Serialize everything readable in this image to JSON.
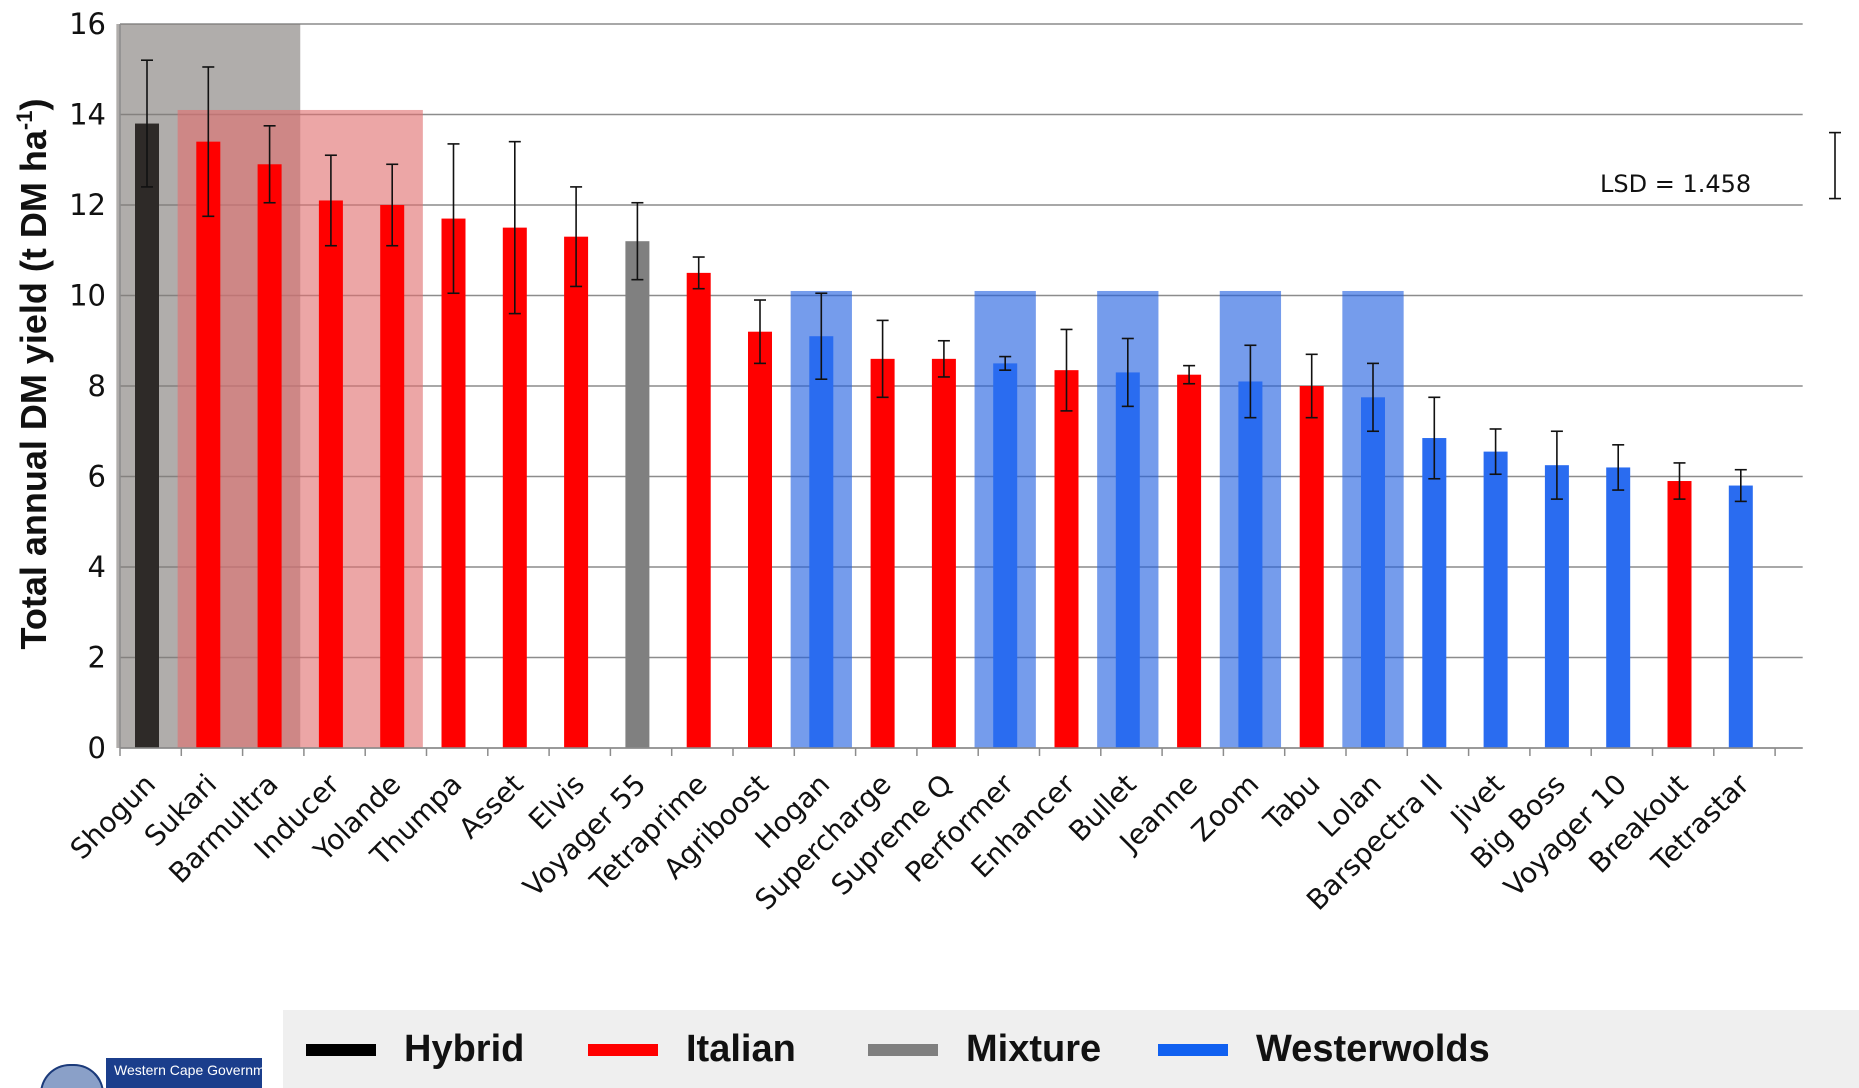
{
  "chart_data": {
    "type": "bar",
    "title": "",
    "xlabel": "",
    "ylabel": "Total annual DM yield (t DM ha",
    "ylabel_superscript": "-1",
    "ylabel_close": ")",
    "ylim": [
      0,
      16
    ],
    "yticks": [
      0,
      2,
      4,
      6,
      8,
      10,
      12,
      14,
      16
    ],
    "grid": "horizontal",
    "categories": [
      "Shogun",
      "Sukari",
      "Barmultra",
      "Inducer",
      "Yolande",
      "Thumpa",
      "Asset",
      "Elvis",
      "Voyager 55",
      "Tetraprime",
      "Agriboost",
      "Hogan",
      "Supercharge",
      "Supreme Q",
      "Performer",
      "Enhancer",
      "Bullet",
      "Jeanne",
      "Zoom",
      "Tabu",
      "Lolan",
      "Barspectra II",
      "Jivet",
      "Big Boss",
      "Voyager 10",
      "Breakout",
      "Tetrastar"
    ],
    "values": [
      13.8,
      13.4,
      12.9,
      12.1,
      12.0,
      11.7,
      11.5,
      11.3,
      11.2,
      10.5,
      9.2,
      9.1,
      8.6,
      8.6,
      8.5,
      8.35,
      8.3,
      8.25,
      8.1,
      8.0,
      7.75,
      6.85,
      6.55,
      6.25,
      6.2,
      5.9,
      5.8
    ],
    "error": [
      1.4,
      1.65,
      0.85,
      1.0,
      0.9,
      1.65,
      1.9,
      1.1,
      0.85,
      0.35,
      0.7,
      0.95,
      0.85,
      0.4,
      0.15,
      0.9,
      0.75,
      0.2,
      0.8,
      0.7,
      0.75,
      0.9,
      0.5,
      0.75,
      0.5,
      0.4,
      0.35
    ],
    "groups": [
      "Hybrid",
      "Italian",
      "Italian",
      "Italian",
      "Italian",
      "Italian",
      "Italian",
      "Italian",
      "Mixture",
      "Italian",
      "Italian",
      "Westerwolds",
      "Italian",
      "Italian",
      "Westerwolds",
      "Italian",
      "Westerwolds",
      "Italian",
      "Westerwolds",
      "Italian",
      "Westerwolds",
      "Westerwolds",
      "Westerwolds",
      "Westerwolds",
      "Westerwolds",
      "Italian",
      "Westerwolds"
    ],
    "legend": [
      {
        "name": "Hybrid",
        "color": "#000000"
      },
      {
        "name": "Italian",
        "color": "#ff0000"
      },
      {
        "name": "Mixture",
        "color": "#7f7f7f"
      },
      {
        "name": "Westerwolds",
        "color": "#1060f0"
      }
    ],
    "bar_colors": {
      "Hybrid": "#2e2a28",
      "Italian": "#ff0000",
      "Mixture": "#808080",
      "Westerwolds": "#2a6cf0"
    },
    "highlight_regions": [
      {
        "from_index": 0,
        "to_index": 2,
        "top": 16,
        "color": "#7f7a78"
      },
      {
        "from_index": 1,
        "to_index": 4,
        "top": 14.1,
        "color": "#e07070"
      },
      {
        "from_index": 11,
        "to_index": 11,
        "top": 10.1,
        "color": "#2060e0"
      },
      {
        "from_index": 14,
        "to_index": 14,
        "top": 10.1,
        "color": "#2060e0"
      },
      {
        "from_index": 16,
        "to_index": 16,
        "top": 10.1,
        "color": "#2060e0"
      },
      {
        "from_index": 18,
        "to_index": 18,
        "top": 10.1,
        "color": "#2060e0"
      },
      {
        "from_index": 20,
        "to_index": 20,
        "top": 10.1,
        "color": "#2060e0"
      }
    ],
    "annotation": {
      "text": "LSD = 1.458",
      "lsd_value": 1.458
    }
  },
  "logo": {
    "text": "Western Cape Government"
  }
}
